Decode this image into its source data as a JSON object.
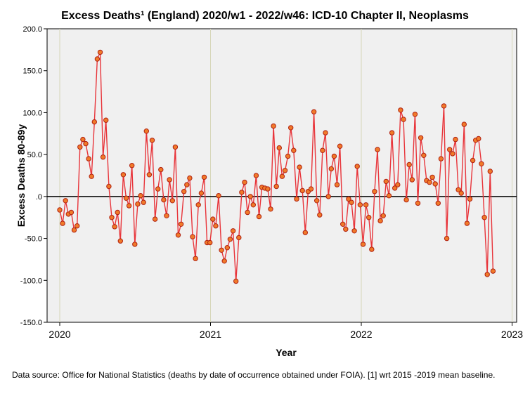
{
  "chart_data": {
    "type": "scatter",
    "title": "Excess Deaths¹ (England) 2020/w1 - 2022/w46: ICD-10 Chapter II, Neoplasms",
    "xlabel": "Year",
    "ylabel": "Excess Deaths 80-89y",
    "xlim": [
      2020,
      2023
    ],
    "ylim": [
      -150,
      200
    ],
    "x_ticks": [
      "2020",
      "2021",
      "2022",
      "2023"
    ],
    "y_ticks": [
      "200.0",
      "150.0",
      "100.0",
      "50.0",
      ".0",
      "-50.0",
      "-100.0",
      "-150.0"
    ],
    "grid": true,
    "reference_line_y": 0,
    "colors": {
      "line": "#e8343a",
      "marker_fill": "#f07a2a",
      "marker_edge": "#b02010",
      "plot_bg": "#f0f0f0",
      "grid": "#d6d6b8"
    },
    "series": [
      {
        "values": [
          -16,
          -32,
          -5,
          -21,
          -19,
          -40,
          -35,
          59,
          68,
          63,
          45,
          24,
          89,
          164,
          172,
          47,
          91,
          12,
          -25,
          -36,
          -19,
          -53,
          26,
          -2,
          -11,
          37,
          -57,
          -9,
          1,
          -7,
          78,
          26,
          67,
          -27,
          9,
          32,
          -4,
          -23,
          20,
          -5,
          59,
          -46,
          -33,
          6,
          14,
          22,
          -48,
          -74,
          -10,
          4,
          23,
          -55,
          -55,
          -27,
          -35,
          1,
          -64,
          -77,
          -61,
          -51,
          -41,
          -101,
          -49,
          5,
          17,
          -19,
          0,
          -10,
          25,
          -24,
          11,
          10,
          9,
          -15,
          84,
          12,
          58,
          24,
          31,
          48,
          82,
          55,
          -3,
          35,
          7,
          -43,
          6,
          9,
          101,
          -5,
          -22,
          55,
          76,
          0,
          33,
          48,
          14,
          60,
          -33,
          -39,
          -3,
          -7,
          -41,
          36,
          -10,
          -57,
          -10,
          -25,
          -63,
          6,
          56,
          -29,
          -23,
          18,
          1,
          76,
          10,
          14,
          103,
          92,
          -4,
          38,
          20,
          98,
          -8,
          70,
          49,
          19,
          17,
          23,
          15,
          -8,
          45,
          108,
          -50,
          56,
          51,
          68,
          8,
          4,
          86,
          -32,
          -3,
          43,
          67,
          69,
          39,
          -25,
          -93,
          30,
          -89
        ]
      }
    ]
  },
  "source_note": "Data source: Office for National Statistics (deaths by date of occurrence obtained under FOIA). [1] wrt 2015 -2019 mean baseline."
}
